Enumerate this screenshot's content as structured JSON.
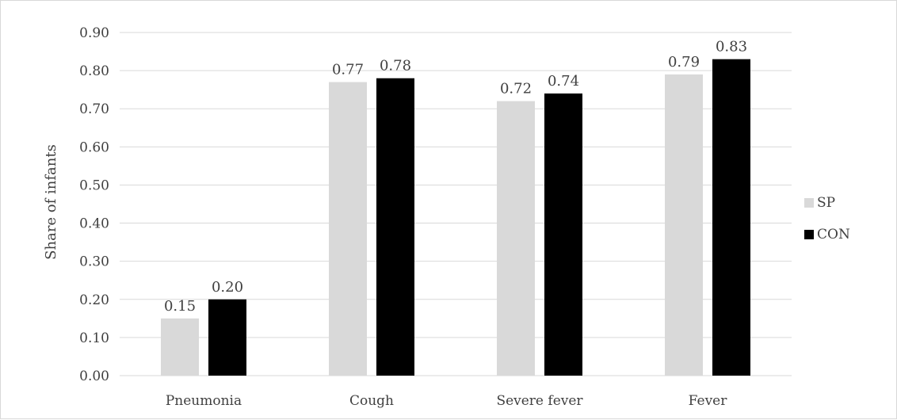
{
  "chart_data": {
    "type": "bar",
    "categories": [
      "Pneumonia",
      "Cough",
      "Severe fever",
      "Fever"
    ],
    "series": [
      {
        "name": "SP",
        "values": [
          0.15,
          0.77,
          0.72,
          0.79
        ],
        "color": "#d9d9d9"
      },
      {
        "name": "CON",
        "values": [
          0.2,
          0.78,
          0.74,
          0.83
        ],
        "color": "#000000"
      }
    ],
    "title": "",
    "xlabel": "",
    "ylabel": "Share of infants",
    "ylim": [
      0,
      0.9
    ],
    "yticks": [
      "0.00",
      "0.10",
      "0.20",
      "0.30",
      "0.40",
      "0.50",
      "0.60",
      "0.70",
      "0.80",
      "0.90"
    ],
    "grid": true,
    "legend": "right",
    "data_label_format": "2dp"
  }
}
